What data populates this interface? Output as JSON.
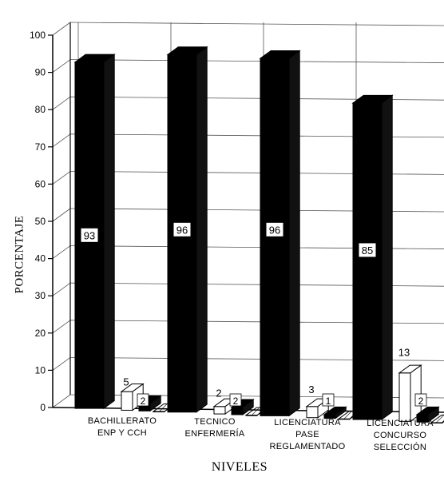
{
  "chart_data": {
    "type": "bar",
    "title": "",
    "xlabel": "NIVELES",
    "ylabel": "PORCENTAJE",
    "ylim": [
      0,
      100
    ],
    "yticks": [
      "0",
      "10",
      "20",
      "30",
      "40",
      "50",
      "60",
      "70",
      "80",
      "90",
      "100"
    ],
    "categories": [
      [
        "BACHILLERATO",
        "ENP Y CCH"
      ],
      [
        "TECNICO",
        "ENFERMERÍA"
      ],
      [
        "LICENCIATURA",
        "PASE",
        "REGLAMENTADO"
      ],
      [
        "LICENCIATURA",
        "CONCURSO",
        "SELECCIÓN"
      ]
    ],
    "series": [
      {
        "values": [
          93,
          96,
          96,
          85
        ],
        "color": "#000000",
        "style": "solid"
      },
      {
        "values": [
          5,
          2,
          3,
          13
        ],
        "color": "#ffffff",
        "style": "outline"
      },
      {
        "values": [
          2,
          2,
          1,
          2
        ],
        "color": "#000000",
        "style": "solid"
      },
      {
        "values": [
          0,
          0,
          0,
          0
        ],
        "color": "#ffffff",
        "style": "hatched"
      }
    ],
    "data_labels": [
      [
        "93",
        "5",
        "2"
      ],
      [
        "96",
        "2",
        "2"
      ],
      [
        "96",
        "3",
        "1"
      ],
      [
        "85",
        "13",
        "2"
      ]
    ],
    "grid": true,
    "three_d": true
  }
}
